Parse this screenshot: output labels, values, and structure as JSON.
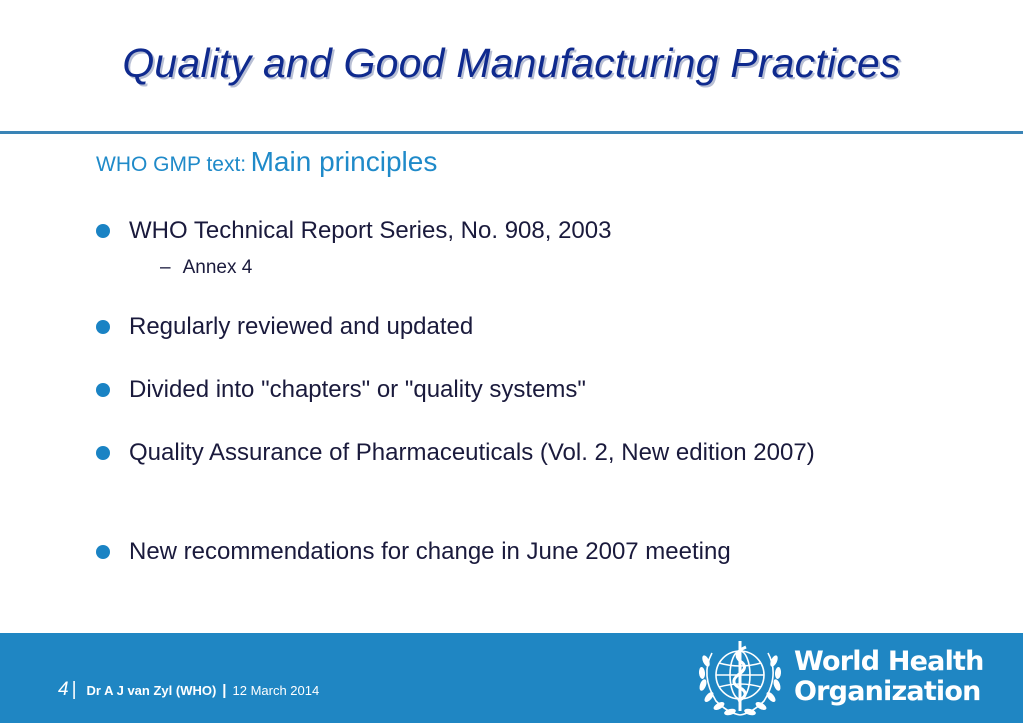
{
  "slide": {
    "title": "Quality and Good Manufacturing Practices",
    "subtitle": {
      "prefix": "WHO GMP text:",
      "main": "Main principles"
    },
    "bullets": [
      {
        "text": "WHO Technical Report Series, No. 908, 2003",
        "sub_items": [
          "Annex 4"
        ]
      },
      {
        "text": "Regularly reviewed and updated"
      },
      {
        "text": "Divided into \"chapters\" or \"quality systems\""
      },
      {
        "text": "Quality Assurance of Pharmaceuticals (Vol. 2, New edition 2007)"
      },
      {
        "text": "New recommendations for change in June 2007 meeting"
      }
    ]
  },
  "footer": {
    "page_number": "4",
    "separator": "|",
    "author": "Dr A J van Zyl (WHO)",
    "date": "12 March 2014",
    "organization": {
      "line1": "World Health",
      "line2": "Organization"
    }
  },
  "colors": {
    "title": "#0f2a8e",
    "accent": "#1f8ac9",
    "bullet": "#1a83c4",
    "body_text": "#1a1a3c",
    "footer_bg": "#1f86c3"
  },
  "icons": {
    "logo": "who-emblem-icon",
    "bullet": "filled-circle"
  }
}
